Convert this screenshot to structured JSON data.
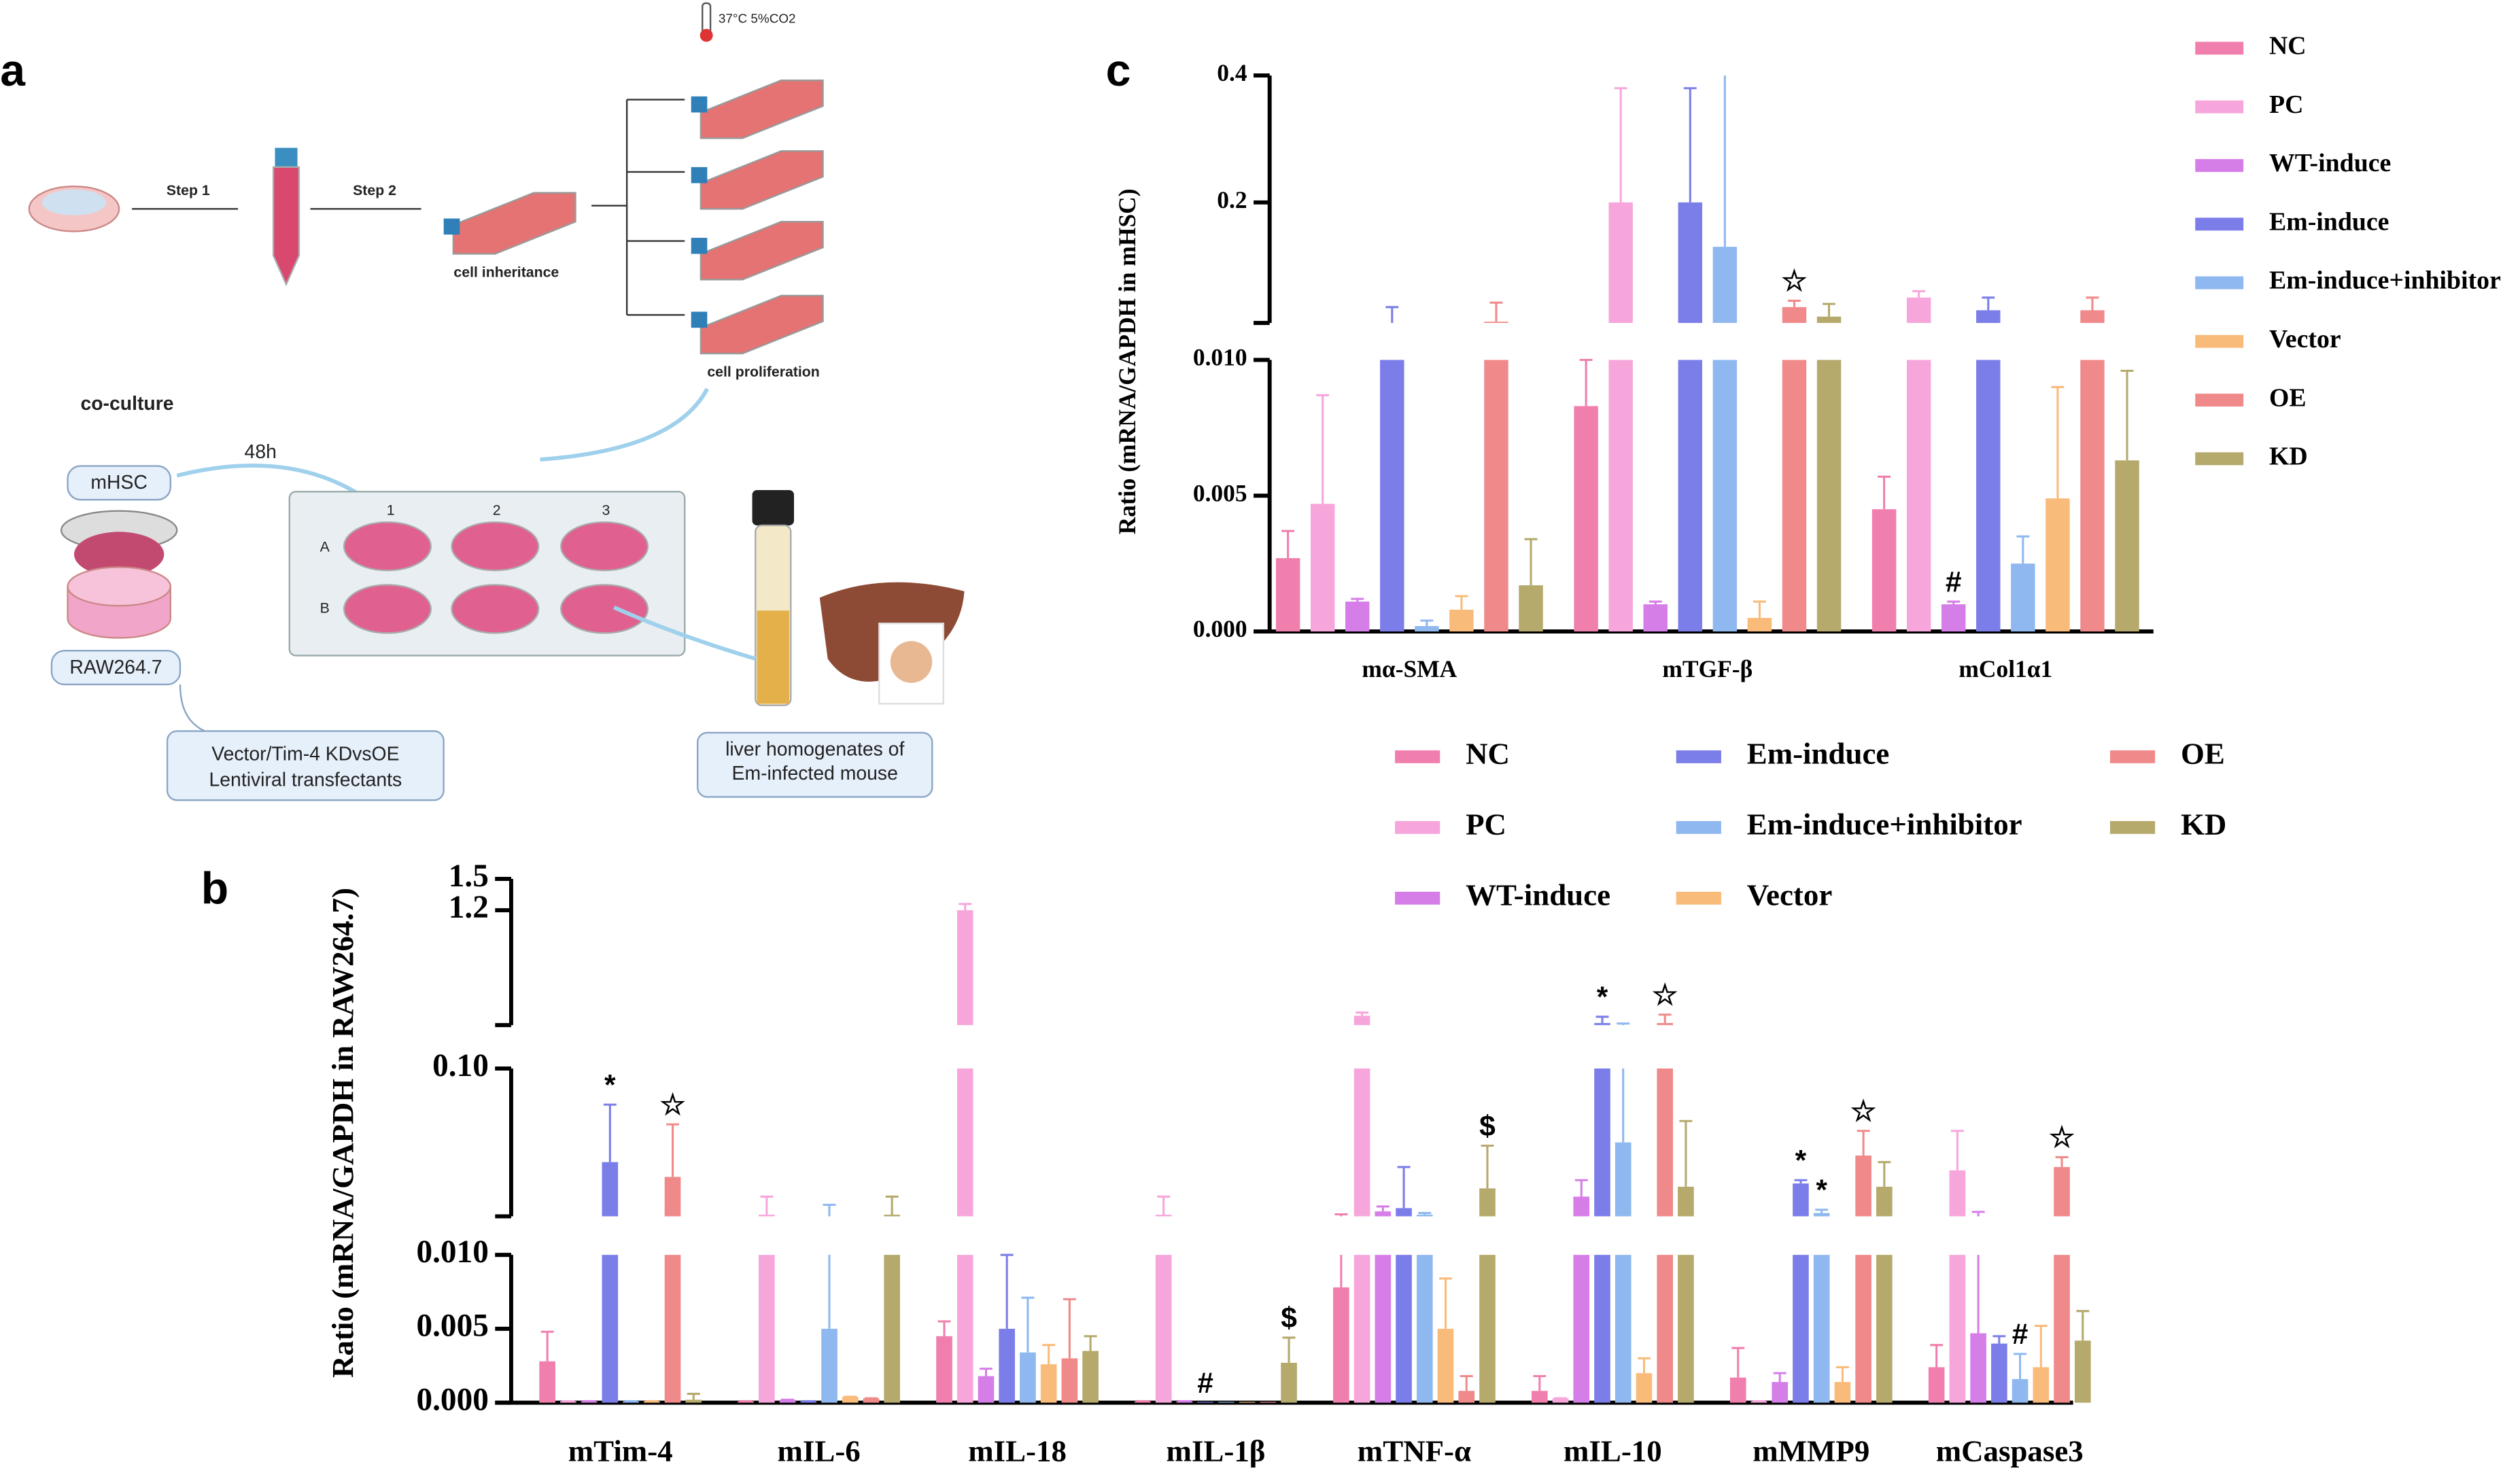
{
  "diagram": {
    "panel": "a",
    "temp": "37°C 5%CO2",
    "step1": "Step 1",
    "step2": "Step 2",
    "inheritance": "cell inheritance",
    "proliferation": "cell proliferation",
    "coculture": "co-culture",
    "time": "48h",
    "mhsc": "mHSC",
    "raw": "RAW264.7",
    "transfectants": [
      "Vector/Tim-4 KDvsOE",
      "Lentiviral transfectants"
    ],
    "liver_note": [
      "liver homogenates of",
      "Em-infected mouse"
    ],
    "columns": [
      "1",
      "2",
      "3"
    ],
    "rows": [
      "A",
      "B"
    ]
  },
  "chart_data": [
    {
      "type": "bar",
      "panel": "b",
      "ylabel": "Ratio (mRNA/GAPDH in RAW264.7)",
      "legend": "top-right",
      "categories": [
        "mTim-4",
        "mIL-6",
        "mIL-18",
        "mIL-1β",
        "mTNF-α",
        "mIL-10",
        "mMMP9",
        "mCaspase3"
      ],
      "segments": [
        {
          "ylim": [
            0,
            0.01
          ],
          "yticks": [
            {
              "value": 0,
              "label": "0.000"
            },
            {
              "value": 0.005,
              "label": "0.005"
            },
            {
              "value": 0.01,
              "label": "0.010"
            }
          ]
        },
        {
          "ylim": [
            0.01,
            0.1
          ],
          "yticks": [
            {
              "value": 0.1,
              "label": "0.10"
            }
          ]
        },
        {
          "ylim": [
            0.1,
            1.5
          ],
          "yticks": [
            1.2,
            1.5
          ]
        }
      ],
      "series": [
        {
          "name": "NC",
          "color": "#f07fae",
          "values": [
            0.0028,
            0.0001,
            0.0045,
            0.0001,
            0.0078,
            0.0008,
            0.0017,
            0.0024
          ],
          "errors": [
            0.002,
            0,
            0.001,
            0,
            0.0034,
            0.001,
            0.002,
            0.0015
          ],
          "markers": [
            null,
            null,
            null,
            null,
            null,
            null,
            null,
            null
          ]
        },
        {
          "name": "PC",
          "color": "#f7a6dc",
          "values": [
            0.0001,
            0.011,
            1.2,
            0.011,
            0.19,
            0.0003,
            0.0001,
            0.038
          ],
          "errors": [
            0,
            0.011,
            0.06,
            0.011,
            0.03,
            0,
            0,
            0.024
          ],
          "markers": [
            null,
            null,
            null,
            null,
            null,
            null,
            null,
            null
          ]
        },
        {
          "name": "WT-induce",
          "color": "#d67ee8",
          "values": [
            0.0001,
            0.0002,
            0.0018,
            0.0001,
            0.013,
            0.022,
            0.0014,
            0.0047
          ],
          "errors": [
            0,
            0,
            0.0005,
            0,
            0.003,
            0.01,
            0.0006,
            0.008
          ],
          "markers": [
            null,
            null,
            null,
            null,
            null,
            null,
            null,
            null
          ]
        },
        {
          "name": "Em-induce",
          "color": "#7b7ee8",
          "values": [
            0.043,
            0.0001,
            0.005,
            0,
            0.015,
            0.12,
            0.03,
            0.004
          ],
          "errors": [
            0.035,
            0,
            0.005,
            0,
            0.025,
            0.06,
            0.002,
            0.0005
          ],
          "markers": [
            "*",
            null,
            null,
            "#",
            null,
            "*",
            "*",
            null
          ]
        },
        {
          "name": "Em-induce+inhibitor",
          "color": "#8fb8f0",
          "values": [
            0.0001,
            0.005,
            0.0034,
            0,
            0.011,
            0.055,
            0.012,
            0.0016
          ],
          "errors": [
            0,
            0.012,
            0.0037,
            0,
            0.001,
            0.06,
            0.002,
            0.0017
          ],
          "markers": [
            null,
            null,
            null,
            null,
            null,
            null,
            "*",
            "#"
          ]
        },
        {
          "name": "Vector",
          "color": "#f9bb7a",
          "values": [
            0.0001,
            0.0004,
            0.0026,
            0,
            0.005,
            0.002,
            0.0014,
            0.0024
          ],
          "errors": [
            0,
            0,
            0.0013,
            0,
            0.0034,
            0.001,
            0.001,
            0.0028
          ],
          "markers": [
            null,
            null,
            null,
            null,
            null,
            null,
            null,
            null
          ]
        },
        {
          "name": "OE",
          "color": "#f08a8a",
          "values": [
            0.034,
            0.0003,
            0.003,
            0,
            0.0008,
            0.12,
            0.047,
            0.04
          ],
          "errors": [
            0.032,
            0,
            0.004,
            0,
            0.001,
            0.08,
            0.015,
            0.006
          ],
          "markers": [
            "☆",
            null,
            null,
            null,
            null,
            "☆",
            "☆",
            "☆"
          ]
        },
        {
          "name": "KD",
          "color": "#b5a96b",
          "values": [
            0.0002,
            0.011,
            0.0035,
            0.0027,
            0.027,
            0.028,
            0.028,
            0.0042
          ],
          "errors": [
            0.0004,
            0.011,
            0.001,
            0.0017,
            0.026,
            0.04,
            0.015,
            0.002
          ],
          "markers": [
            null,
            null,
            null,
            "$",
            "$",
            null,
            null,
            null
          ]
        }
      ]
    },
    {
      "type": "bar",
      "panel": "c",
      "ylabel": "Ratio (mRNA/GAPDH in mHSC)",
      "legend": "right",
      "categories": [
        "mα-SMA",
        "mTGF-β",
        "mCol1α1"
      ],
      "segments": [
        {
          "ylim": [
            0,
            0.01
          ],
          "yticks": [
            {
              "value": 0,
              "label": "0.000"
            },
            {
              "value": 0.005,
              "label": "0.005"
            },
            {
              "value": 0.01,
              "label": "0.010"
            }
          ]
        },
        {
          "ylim": [
            0.01,
            0.4
          ],
          "yticks": [
            0.2,
            0.4
          ]
        }
      ],
      "series": [
        {
          "name": "NC",
          "color": "#f07fae",
          "values": [
            0.0027,
            0.0083,
            0.0045
          ],
          "errors": [
            0.001,
            0.0017,
            0.0012
          ],
          "markers": [
            null,
            null,
            null
          ]
        },
        {
          "name": "PC",
          "color": "#f7a6dc",
          "values": [
            0.0047,
            0.2,
            0.05
          ],
          "errors": [
            0.004,
            0.18,
            0.01
          ],
          "markers": [
            null,
            null,
            null
          ]
        },
        {
          "name": "WT-induce",
          "color": "#d67ee8",
          "values": [
            0.0011,
            0.001,
            0.001
          ],
          "errors": [
            0.0001,
            0.0001,
            0.0001
          ],
          "markers": [
            null,
            null,
            "#"
          ]
        },
        {
          "name": "Em-induce",
          "color": "#7b7ee8",
          "values": [
            0.01,
            0.2,
            0.03
          ],
          "errors": [
            0.025,
            0.18,
            0.02
          ],
          "markers": [
            null,
            null,
            null
          ]
        },
        {
          "name": "Em-induce+inhibitor",
          "color": "#8fb8f0",
          "values": [
            0.0002,
            0.13,
            0.0025
          ],
          "errors": [
            0.0002,
            0.29,
            0.001
          ],
          "markers": [
            null,
            null,
            null
          ]
        },
        {
          "name": "Vector",
          "color": "#f9bb7a",
          "values": [
            0.0008,
            0.0005,
            0.0049
          ],
          "errors": [
            0.0005,
            0.0006,
            0.0041
          ],
          "markers": [
            null,
            null,
            null
          ]
        },
        {
          "name": "OE",
          "color": "#f08a8a",
          "values": [
            0.012,
            0.035,
            0.03
          ],
          "errors": [
            0.03,
            0.01,
            0.02
          ],
          "markers": [
            null,
            "☆",
            null
          ]
        },
        {
          "name": "KD",
          "color": "#b5a96b",
          "values": [
            0.0017,
            0.02,
            0.0063
          ],
          "errors": [
            0.0017,
            0.02,
            0.0033
          ],
          "markers": [
            null,
            null,
            null
          ]
        }
      ]
    }
  ]
}
